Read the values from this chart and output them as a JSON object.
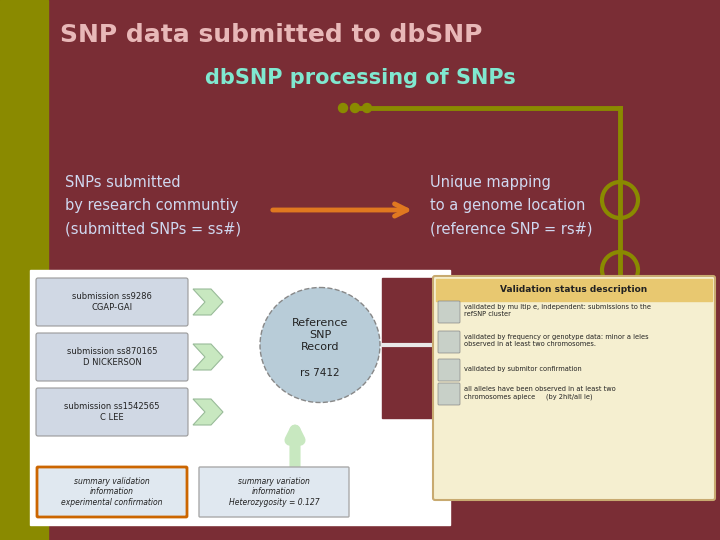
{
  "title": "SNP data submitted to dbSNP",
  "subtitle": "dbSNP processing of SNPs",
  "bg_color": "#7a2d35",
  "left_bar_color": "#8a8a00",
  "title_color": "#e8b8b8",
  "subtitle_color": "#80e8d0",
  "left_text": "SNPs submitted\nby research communtiy\n(submitted SNPs = ss#)",
  "right_text": "Unique mapping\nto a genome location\n(reference SNP = rs#)",
  "left_text_color": "#d0d8f0",
  "right_text_color": "#d0d8f0",
  "arrow_color": "#e07820",
  "dots_color": "#8a8a00",
  "line_color": "#8a8a00",
  "circle_color": "#8a8a00",
  "submissions": [
    "submission ss9286\nCGAP-GAI",
    "submission ss870165\nD NICKERSON",
    "submission ss1542565\nC LEE"
  ],
  "snp_record_label": "Reference\nSNP\nRecord\n\nrs 7412",
  "validation_title": "Validation status description",
  "validation_items": [
    "validated by mu ltip e, independent: submissions to the\nrefSNP cluster",
    "validated by frequency or genotype data: minor a leles\nobserved in at least two chromosomes.",
    "validated by submitor confirmation",
    "all alleles have been observed in at least two\nchromosomes apiece     (by 2hit/all le)"
  ],
  "summary_left": "summary validation\ninformation\nexperimental confirmation",
  "summary_right": "summary variation\ninformation\nHeterozygosity = 0.127",
  "green_arrow_color": "#c8e8c0",
  "white_arrow_color": "#e8e8e8",
  "diagram_bg": "#ffffff",
  "sub_box_color": "#d0d8e4",
  "sub_box_border": "#999999",
  "ellipse_color": "#b8ccd8",
  "val_box_bg": "#f5efd0",
  "val_box_border": "#c8aa70",
  "val_title_bg": "#e8c870",
  "summary_left_border": "#cc6600",
  "summary_box_bg": "#e0e8f0"
}
